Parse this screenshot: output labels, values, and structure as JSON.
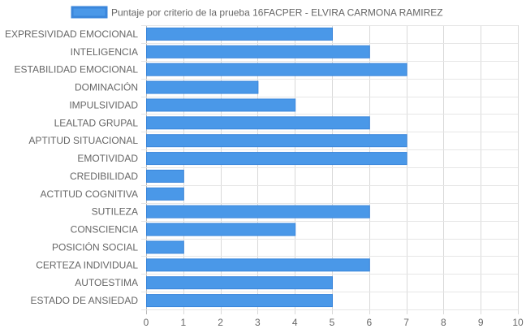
{
  "chart_data": {
    "type": "bar",
    "orientation": "horizontal",
    "categories": [
      "EXPRESIVIDAD EMOCIONAL",
      "INTELIGENCIA",
      "ESTABILIDAD EMOCIONAL",
      "DOMINACIÓN",
      "IMPULSIVIDAD",
      "LEALTAD GRUPAL",
      "APTITUD SITUACIONAL",
      "EMOTIVIDAD",
      "CREDIBILIDAD",
      "ACTITUD COGNITIVA",
      "SUTILEZA",
      "CONSCIENCIA",
      "POSICIÓN SOCIAL",
      "CERTEZA INDIVIDUAL",
      "AUTOESTIMA",
      "ESTADO DE ANSIEDAD"
    ],
    "series": [
      {
        "name": "Puntaje por criterio de la prueba 16FACPER - ELVIRA CARMONA RAMIREZ",
        "values": [
          5,
          6,
          7,
          3,
          4,
          6,
          7,
          7,
          1,
          1,
          6,
          4,
          1,
          6,
          5,
          5
        ],
        "color": "#4a98e8",
        "border_color": "#3a86db"
      }
    ],
    "xlim": [
      0,
      10
    ],
    "xticks": [
      "0",
      "1",
      "2",
      "3",
      "4",
      "5",
      "6",
      "7",
      "8",
      "9",
      "10"
    ],
    "grid": true,
    "legend_position": "top"
  }
}
